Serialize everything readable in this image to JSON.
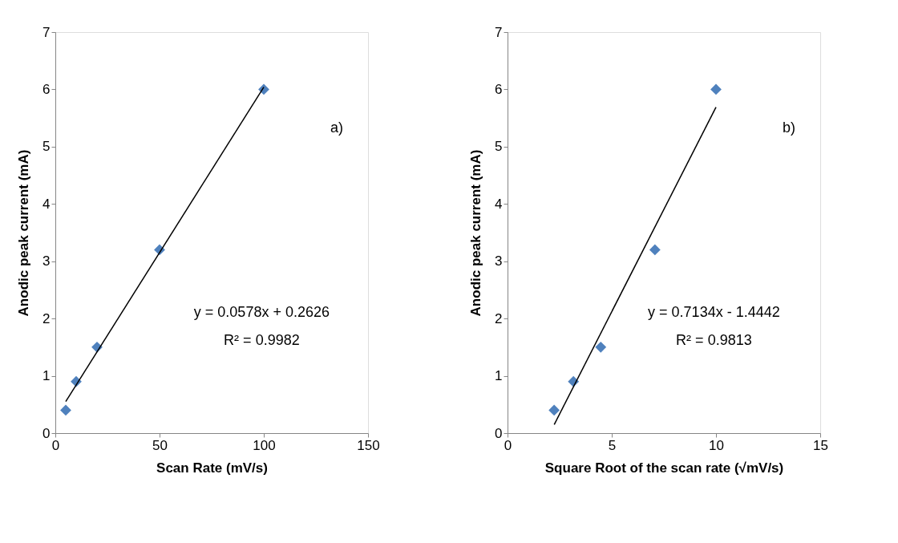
{
  "chart_data": [
    {
      "type": "scatter",
      "xlabel": "Scan Rate (mV/s)",
      "ylabel": "Anodic peak current (mA)",
      "xlim": [
        0,
        150
      ],
      "xticks": [
        0,
        50,
        100,
        150
      ],
      "ylim": [
        0,
        7
      ],
      "yticks": [
        0,
        1,
        2,
        3,
        4,
        5,
        6,
        7
      ],
      "grid": false,
      "marker": "diamond",
      "annotations": [
        "a)",
        "y = 0.0578x + 0.2626",
        "R² = 0.9982"
      ],
      "series": [
        {
          "color": "#4f81bd",
          "x": [
            5,
            10,
            20,
            50,
            100
          ],
          "values": [
            0.4,
            0.9,
            1.5,
            3.2,
            6.0
          ]
        },
        {
          "type": "line",
          "color": "#000000",
          "marker": "none",
          "line_style": "solid",
          "x": [
            5,
            100
          ],
          "values": [
            0.55,
            6.04
          ]
        }
      ]
    },
    {
      "type": "scatter",
      "xlabel": "Square Root of the scan rate (√mV/s)",
      "ylabel": "Anodic peak current (mA)",
      "xlim": [
        0,
        15
      ],
      "xticks": [
        0,
        5,
        10,
        15
      ],
      "ylim": [
        0,
        7
      ],
      "yticks": [
        0,
        1,
        2,
        3,
        4,
        5,
        6,
        7
      ],
      "grid": false,
      "marker": "diamond",
      "annotations": [
        "b)",
        "y = 0.7134x - 1.4442",
        "R² = 0.9813"
      ],
      "series": [
        {
          "color": "#4f81bd",
          "x": [
            2.236,
            3.162,
            4.472,
            7.071,
            10
          ],
          "values": [
            0.4,
            0.9,
            1.5,
            3.2,
            6.0
          ]
        },
        {
          "type": "line",
          "color": "#000000",
          "marker": "none",
          "line_style": "solid",
          "x": [
            2.24,
            10
          ],
          "values": [
            0.15,
            5.69
          ]
        }
      ]
    }
  ]
}
